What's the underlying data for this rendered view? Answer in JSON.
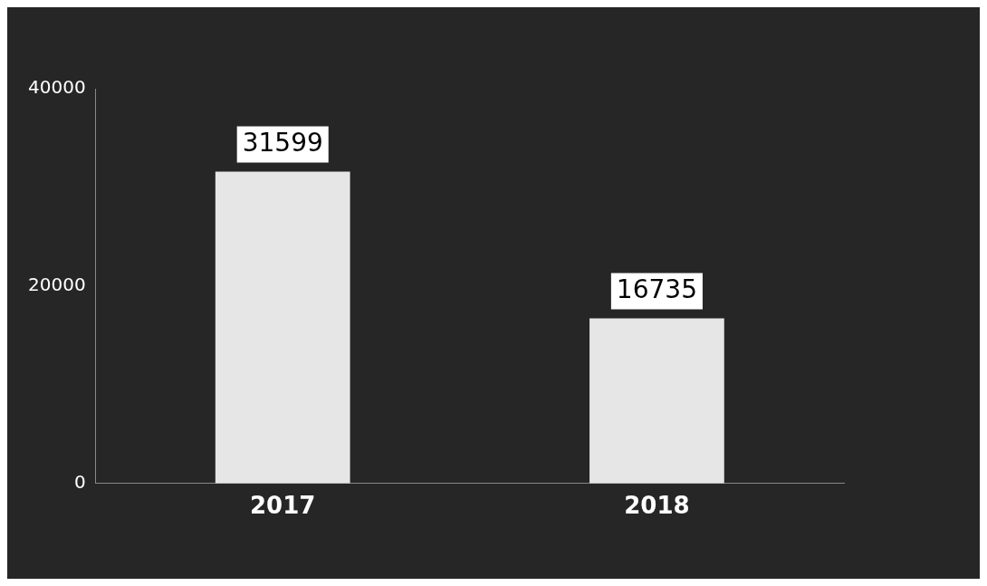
{
  "chart_data": {
    "type": "bar",
    "categories": [
      "2017",
      "2018"
    ],
    "values": [
      31599,
      16735
    ],
    "color": "#e6e6e6",
    "ylim": [
      0,
      40000
    ],
    "yticks": [
      0,
      20000,
      40000
    ],
    "data_labels": true,
    "grid": false,
    "legend": false
  }
}
